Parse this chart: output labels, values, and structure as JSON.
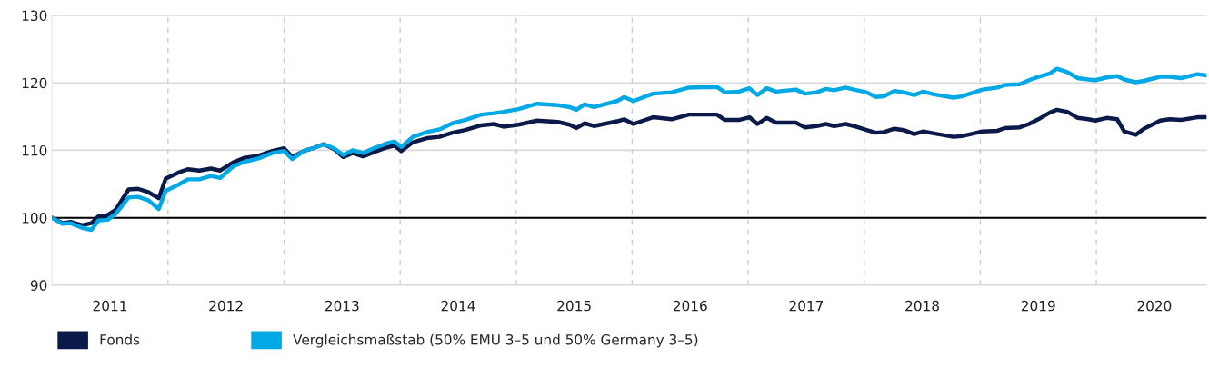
{
  "chart_data": {
    "type": "line",
    "x": [
      2011.0,
      2011.09,
      2011.16,
      2011.26,
      2011.34,
      2011.4,
      2011.48,
      2011.55,
      2011.66,
      2011.74,
      2011.83,
      2011.92,
      2011.98,
      2012.09,
      2012.17,
      2012.27,
      2012.37,
      2012.45,
      2012.56,
      2012.66,
      2012.78,
      2012.9,
      2013.0,
      2013.07,
      2013.17,
      2013.25,
      2013.34,
      2013.43,
      2013.51,
      2013.59,
      2013.68,
      2013.77,
      2013.88,
      2013.95,
      2014.01,
      2014.11,
      2014.23,
      2014.34,
      2014.45,
      2014.56,
      2014.7,
      2014.81,
      2014.89,
      2015.02,
      2015.18,
      2015.36,
      2015.46,
      2015.52,
      2015.59,
      2015.67,
      2015.87,
      2015.93,
      2016.01,
      2016.18,
      2016.34,
      2016.49,
      2016.73,
      2016.8,
      2016.92,
      2017.01,
      2017.08,
      2017.16,
      2017.24,
      2017.41,
      2017.49,
      2017.59,
      2017.67,
      2017.74,
      2017.84,
      2017.91,
      2018.02,
      2018.1,
      2018.17,
      2018.26,
      2018.34,
      2018.43,
      2018.51,
      2018.6,
      2018.77,
      2018.84,
      2019.02,
      2019.15,
      2019.21,
      2019.34,
      2019.42,
      2019.5,
      2019.6,
      2019.66,
      2019.75,
      2019.84,
      2019.93,
      2019.99,
      2020.09,
      2020.18,
      2020.24,
      2020.34,
      2020.41,
      2020.55,
      2020.63,
      2020.73,
      2020.87,
      2020.95
    ],
    "series": [
      {
        "name": "Fonds",
        "color": "#0c1a4a",
        "values": [
          100,
          99.2,
          99.4,
          98.9,
          99.2,
          100.2,
          100.4,
          101.2,
          104.2,
          104.3,
          103.8,
          102.9,
          105.8,
          106.7,
          107.2,
          107.0,
          107.3,
          107.0,
          108.2,
          108.9,
          109.2,
          109.9,
          110.3,
          109.0,
          109.9,
          110.3,
          110.9,
          110.2,
          109.0,
          109.6,
          109.1,
          109.7,
          110.4,
          110.7,
          109.9,
          111.2,
          111.8,
          112.0,
          112.6,
          113.0,
          113.7,
          113.9,
          113.5,
          113.8,
          114.4,
          114.2,
          113.8,
          113.3,
          114.0,
          113.6,
          114.3,
          114.6,
          113.9,
          114.9,
          114.6,
          115.3,
          115.3,
          114.5,
          114.5,
          114.9,
          113.9,
          114.8,
          114.1,
          114.1,
          113.4,
          113.6,
          113.9,
          113.6,
          113.9,
          113.6,
          113.0,
          112.6,
          112.7,
          113.2,
          113.0,
          112.4,
          112.8,
          112.5,
          112.0,
          112.1,
          112.8,
          112.9,
          113.3,
          113.4,
          113.9,
          114.6,
          115.6,
          116.0,
          115.7,
          114.8,
          114.6,
          114.4,
          114.8,
          114.6,
          112.8,
          112.3,
          113.2,
          114.4,
          114.6,
          114.5,
          114.9,
          114.9
        ]
      },
      {
        "name": "Vergleichsmaßstab (50% EMU 3–5 und 50% Germany 3–5)",
        "color": "#00a9e6",
        "values": [
          100,
          99.1,
          99.2,
          98.5,
          98.2,
          99.6,
          99.7,
          100.6,
          103.0,
          103.1,
          102.6,
          101.3,
          104.0,
          104.9,
          105.7,
          105.7,
          106.2,
          105.9,
          107.6,
          108.3,
          108.8,
          109.6,
          109.9,
          108.7,
          109.9,
          110.3,
          110.9,
          110.3,
          109.3,
          110.0,
          109.6,
          110.3,
          111.0,
          111.3,
          110.5,
          112.0,
          112.7,
          113.1,
          114.0,
          114.5,
          115.3,
          115.5,
          115.7,
          116.1,
          116.9,
          116.7,
          116.4,
          116.0,
          116.8,
          116.4,
          117.3,
          117.9,
          117.3,
          118.4,
          118.6,
          119.3,
          119.4,
          118.6,
          118.7,
          119.2,
          118.2,
          119.2,
          118.7,
          119.0,
          118.4,
          118.6,
          119.1,
          118.9,
          119.3,
          119.0,
          118.6,
          117.9,
          118.0,
          118.8,
          118.6,
          118.2,
          118.7,
          118.3,
          117.8,
          118.0,
          119.0,
          119.3,
          119.7,
          119.8,
          120.4,
          120.9,
          121.4,
          122.1,
          121.6,
          120.7,
          120.5,
          120.4,
          120.8,
          121.0,
          120.5,
          120.1,
          120.3,
          120.9,
          120.9,
          120.7,
          121.3,
          121.1
        ]
      }
    ],
    "xlim": [
      2011,
      2020.95
    ],
    "xticks": [
      {
        "value": 2011.5,
        "label": "2011"
      },
      {
        "value": 2012.5,
        "label": "2012"
      },
      {
        "value": 2013.5,
        "label": "2013"
      },
      {
        "value": 2014.5,
        "label": "2014"
      },
      {
        "value": 2015.5,
        "label": "2015"
      },
      {
        "value": 2016.5,
        "label": "2016"
      },
      {
        "value": 2017.5,
        "label": "2017"
      },
      {
        "value": 2018.5,
        "label": "2018"
      },
      {
        "value": 2019.5,
        "label": "2019"
      },
      {
        "value": 2020.5,
        "label": "2020"
      }
    ],
    "ylim": [
      90,
      130
    ],
    "yticks": [
      90,
      100,
      110,
      120,
      130
    ],
    "grid": "y",
    "legend": "bottom left",
    "marker": "none",
    "line_style": "solid",
    "ref_lines": [
      {
        "axis": "y",
        "value": 100,
        "color": "#000000",
        "line_style": "solid"
      },
      {
        "axis": "x",
        "value": 2012,
        "color": "#cccccc",
        "line_style": "dashed"
      },
      {
        "axis": "x",
        "value": 2013,
        "color": "#cccccc",
        "line_style": "dashed"
      },
      {
        "axis": "x",
        "value": 2014,
        "color": "#cccccc",
        "line_style": "dashed"
      },
      {
        "axis": "x",
        "value": 2015,
        "color": "#cccccc",
        "line_style": "dashed"
      },
      {
        "axis": "x",
        "value": 2016,
        "color": "#cccccc",
        "line_style": "dashed"
      },
      {
        "axis": "x",
        "value": 2017,
        "color": "#cccccc",
        "line_style": "dashed"
      },
      {
        "axis": "x",
        "value": 2018,
        "color": "#cccccc",
        "line_style": "dashed"
      },
      {
        "axis": "x",
        "value": 2019,
        "color": "#cccccc",
        "line_style": "dashed"
      },
      {
        "axis": "x",
        "value": 2020,
        "color": "#cccccc",
        "line_style": "dashed"
      }
    ]
  }
}
